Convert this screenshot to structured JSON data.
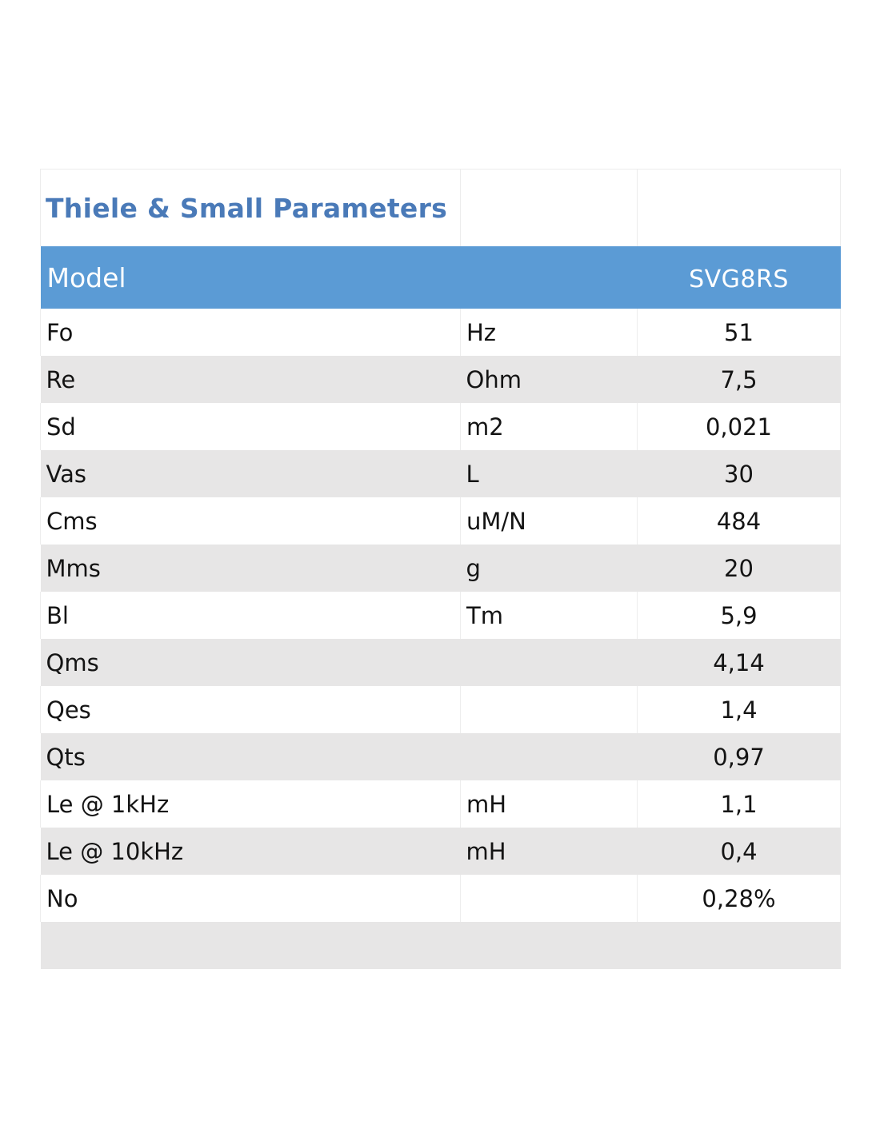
{
  "title": "Thiele & Small Parameters",
  "header": {
    "label": "Model",
    "unit": "",
    "model": "SVG8RS"
  },
  "rows": [
    {
      "name": "Fo",
      "unit": "Hz",
      "value": "51"
    },
    {
      "name": "Re",
      "unit": "Ohm",
      "value": "7,5"
    },
    {
      "name": "Sd",
      "unit": "m2",
      "value": "0,021"
    },
    {
      "name": "Vas",
      "unit": "L",
      "value": "30"
    },
    {
      "name": "Cms",
      "unit": "uM/N",
      "value": "484"
    },
    {
      "name": "Mms",
      "unit": "g",
      "value": "20"
    },
    {
      "name": "Bl",
      "unit": "Tm",
      "value": "5,9"
    },
    {
      "name": "Qms",
      "unit": "",
      "value": "4,14"
    },
    {
      "name": "Qes",
      "unit": "",
      "value": "1,4"
    },
    {
      "name": "Qts",
      "unit": "",
      "value": "0,97"
    },
    {
      "name": "Le @ 1kHz",
      "unit": "mH",
      "value": "1,1"
    },
    {
      "name": "Le @ 10kHz",
      "unit": "mH",
      "value": "0,4"
    },
    {
      "name": "No",
      "unit": "",
      "value": "0,28%"
    }
  ],
  "colors": {
    "title": "#4a7ab8",
    "header_bg": "#5b9bd5",
    "stripe": "#e7e6e6"
  }
}
